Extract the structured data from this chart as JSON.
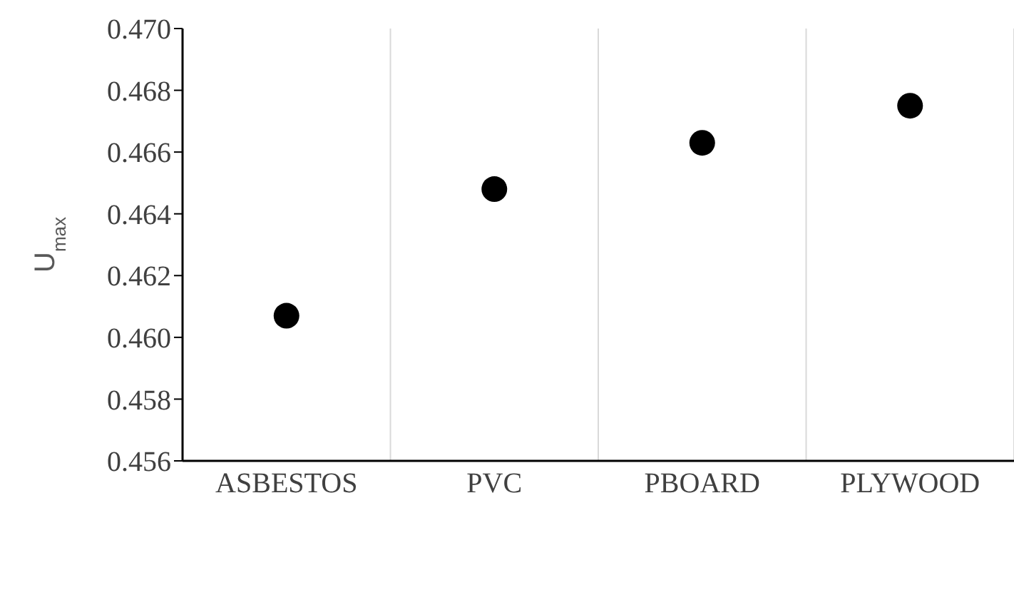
{
  "chart_data": {
    "type": "scatter",
    "ylabel": "U$_{max}$",
    "categories": [
      "ASBESTOS",
      "PVC",
      "PBOARD",
      "PLYWOOD"
    ],
    "values": [
      0.4607,
      0.4648,
      0.4663,
      0.4675
    ],
    "color": "#000000",
    "ylim": [
      0.456,
      0.47
    ],
    "yticks": [
      0.456,
      0.458,
      {
        "value": 0.46,
        "label": "0.460"
      },
      0.462,
      0.464,
      0.466,
      0.468,
      {
        "value": 0.47,
        "label": "0.470"
      }
    ],
    "grid": "x",
    "marker": "circle"
  }
}
